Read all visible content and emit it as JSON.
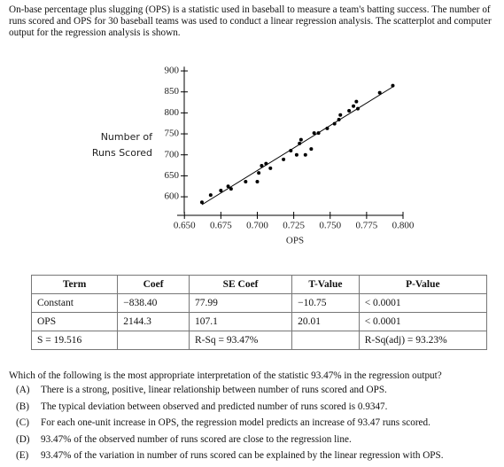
{
  "intro": "On-base percentage plus slugging (OPS) is a statistic used in baseball to measure a team's batting success. The number of runs scored and OPS for 30 baseball teams was used to conduct a linear regression analysis. The scatterplot and computer output for the regression analysis is shown.",
  "chart_data": {
    "type": "scatter",
    "x_label": "OPS",
    "y_label": [
      "Number of",
      "Runs Scored"
    ],
    "color": "#000000",
    "xlim": [
      0.645,
      0.8
    ],
    "ylim": [
      560,
      910
    ],
    "xticks": [
      {
        "value": 0.65,
        "label": "0.650"
      },
      {
        "value": 0.675,
        "label": "0.675"
      },
      {
        "value": 0.7,
        "label": "0.700"
      },
      {
        "value": 0.725,
        "label": "0.725"
      },
      {
        "value": 0.75,
        "label": "0.750"
      },
      {
        "value": 0.775,
        "label": "0.775"
      },
      {
        "value": 0.8,
        "label": "0.800"
      }
    ],
    "yticks": [
      600,
      650,
      700,
      750,
      800,
      850,
      900
    ],
    "x": [
      0.662,
      0.668,
      0.675,
      0.68,
      0.682,
      0.692,
      0.7,
      0.701,
      0.703,
      0.706,
      0.709,
      0.718,
      0.723,
      0.727,
      0.729,
      0.73,
      0.733,
      0.737,
      0.739,
      0.742,
      0.748,
      0.753,
      0.756,
      0.757,
      0.763,
      0.766,
      0.768,
      0.769,
      0.784,
      0.793
    ],
    "values": [
      587,
      604,
      615,
      625,
      619,
      636,
      636,
      657,
      674,
      679,
      668,
      689,
      710,
      700,
      727,
      736,
      700,
      714,
      752,
      752,
      763,
      774,
      784,
      795,
      805,
      816,
      827,
      810,
      848,
      865
    ]
  },
  "table": {
    "header": [
      "Term",
      "Coef",
      "SE Coef",
      "T-Value",
      "P-Value"
    ],
    "rows": [
      [
        "Constant",
        {
          "value": -838.4,
          "label": "−838.40"
        },
        "77.99",
        "−10.75",
        "< 0.0001"
      ],
      [
        "OPS",
        {
          "value": 2144.3,
          "label": "2144.3"
        },
        "107.1",
        "20.01",
        "< 0.0001"
      ],
      [
        "S = 19.516",
        null,
        "R-Sq = 93.47%",
        null,
        "R-Sq(adj) = 93.23%"
      ]
    ]
  },
  "question": "Which of the following is the most appropriate interpretation of the statistic 93.47% in the regression output?",
  "choices": [
    {
      "letter": "(A)",
      "text": "There is a strong, positive, linear relationship between number of runs scored and OPS."
    },
    {
      "letter": "(B)",
      "text": "The typical deviation between observed and predicted number of runs scored is 0.9347."
    },
    {
      "letter": "(C)",
      "text": "For each one-unit increase in OPS, the regression model predicts an increase of 93.47 runs scored."
    },
    {
      "letter": "(D)",
      "text": "93.47% of the observed number of runs scored are close to the regression line."
    },
    {
      "letter": "(E)",
      "text": "93.47% of the variation in number of runs scored can be explained by the linear regression with OPS."
    }
  ]
}
